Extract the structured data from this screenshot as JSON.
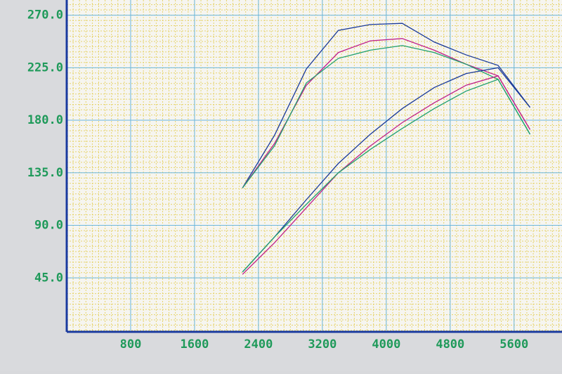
{
  "chart_data": {
    "type": "line",
    "x": [
      2200,
      2600,
      3000,
      3400,
      3800,
      4200,
      4600,
      5000,
      5400,
      5800
    ],
    "series": [
      {
        "color": "#1a3a9a",
        "values": [
          122,
          167,
          224,
          257,
          262,
          263,
          247,
          236,
          227,
          191
        ]
      },
      {
        "color": "#c0208a",
        "values": [
          122,
          160,
          210,
          238,
          248,
          250,
          240,
          228,
          218,
          172
        ]
      },
      {
        "color": "#20a070",
        "values": [
          122,
          158,
          212,
          233,
          240,
          244,
          238,
          228,
          215,
          168
        ]
      },
      {
        "color": "#1a3a9a",
        "values": [
          50,
          80,
          112,
          143,
          168,
          190,
          208,
          220,
          225,
          191
        ]
      },
      {
        "color": "#c0208a",
        "values": [
          48,
          75,
          105,
          135,
          158,
          178,
          195,
          210,
          218,
          172
        ]
      },
      {
        "color": "#20a070",
        "values": [
          50,
          80,
          108,
          135,
          155,
          173,
          190,
          205,
          215,
          168
        ]
      }
    ],
    "xlim": [
      0,
      6200
    ],
    "ylim": [
      0,
      283
    ],
    "xticks": [
      800,
      1600,
      2400,
      3200,
      4000,
      4800,
      5600
    ],
    "yticks": [
      {
        "value": 45,
        "label": "45.0"
      },
      {
        "value": 90,
        "label": "90.0"
      },
      {
        "value": 135,
        "label": "135.0"
      },
      {
        "value": 180,
        "label": "180.0"
      },
      {
        "value": 225,
        "label": "225.0"
      },
      {
        "value": 270,
        "label": "270.0"
      }
    ],
    "grid": true
  }
}
